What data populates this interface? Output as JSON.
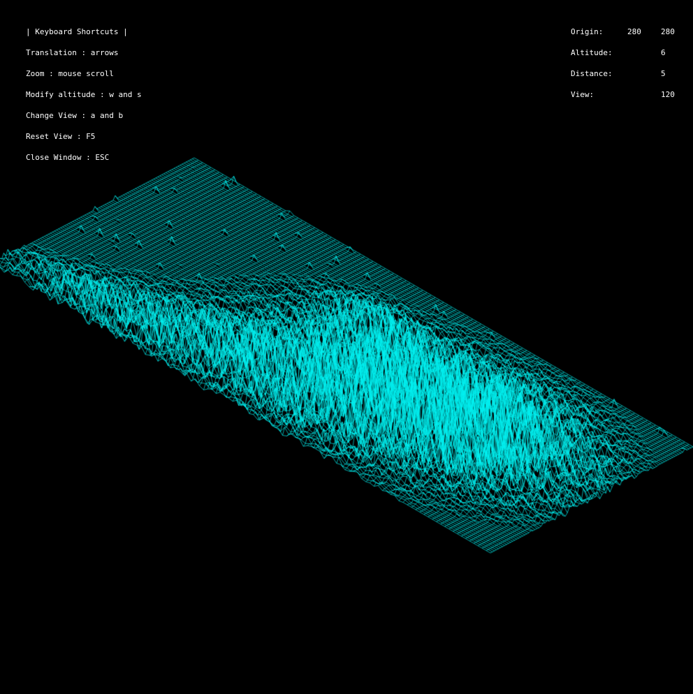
{
  "window": {
    "background_color": "#000000",
    "text_color": "#ffffff",
    "wire_color": "#00f0f0"
  },
  "shortcuts": {
    "title": "| Keyboard Shortcuts |",
    "translation": "Translation : arrows",
    "zoom": "Zoom : mouse scroll",
    "altitude": "Modify altitude : w and s",
    "change_view": "Change View : a and b",
    "reset_view": "Reset View : F5",
    "close_window": "Close Window : ESC"
  },
  "status": {
    "origin_label": "Origin:",
    "origin_x": "280",
    "origin_y": "280",
    "altitude_label": "Altitude:",
    "altitude_value": "6",
    "distance_label": "Distance:",
    "distance_value": "5",
    "view_label": "View:",
    "view_value": "120"
  }
}
